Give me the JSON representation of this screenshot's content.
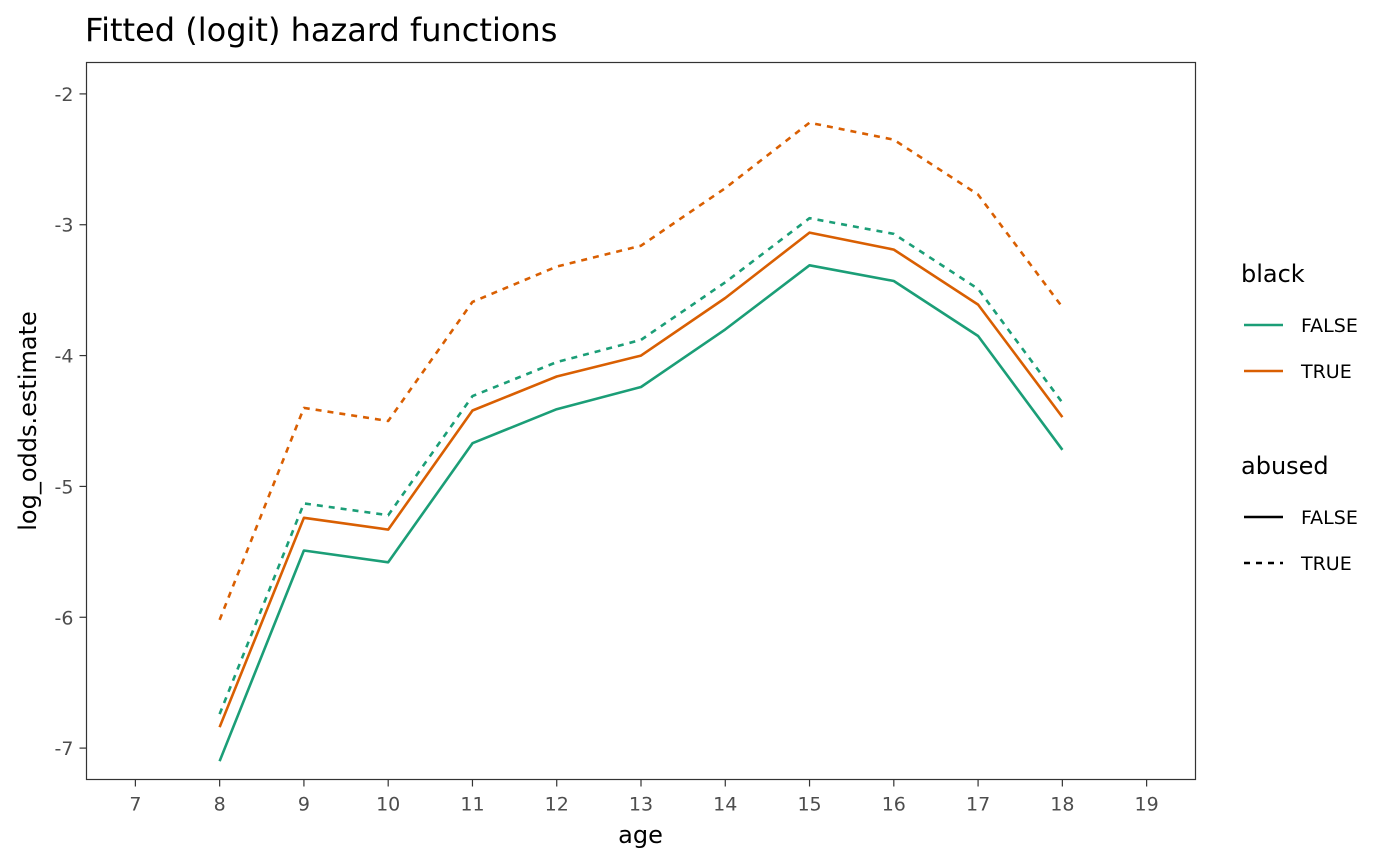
{
  "chart_data": {
    "type": "line",
    "title": "Fitted (logit) hazard functions",
    "xlabel": "age",
    "ylabel": "log_odds.estimate",
    "x": [
      8,
      9,
      10,
      11,
      12,
      13,
      14,
      15,
      16,
      17,
      18
    ],
    "xlim": [
      6.42,
      19.58
    ],
    "ylim": [
      -7.24,
      -1.76
    ],
    "xticks": [
      7,
      8,
      9,
      10,
      11,
      12,
      13,
      14,
      15,
      16,
      17,
      18,
      19
    ],
    "yticks": [
      -7,
      -6,
      -5,
      -4,
      -3,
      -2
    ],
    "series": [
      {
        "black": "FALSE",
        "abused": "FALSE",
        "color": "#1b9e77",
        "dash": "solid",
        "values": [
          -7.1,
          -5.49,
          -5.58,
          -4.67,
          -4.41,
          -4.24,
          -3.8,
          -3.31,
          -3.43,
          -3.85,
          -4.72
        ]
      },
      {
        "black": "TRUE",
        "abused": "FALSE",
        "color": "#d95f02",
        "dash": "solid",
        "values": [
          -6.84,
          -5.24,
          -5.33,
          -4.42,
          -4.16,
          -4.0,
          -3.56,
          -3.06,
          -3.19,
          -3.61,
          -4.47
        ]
      },
      {
        "black": "FALSE",
        "abused": "TRUE",
        "color": "#1b9e77",
        "dash": "dotted",
        "values": [
          -6.74,
          -5.13,
          -5.22,
          -4.31,
          -4.05,
          -3.88,
          -3.44,
          -2.95,
          -3.07,
          -3.49,
          -4.36
        ]
      },
      {
        "black": "TRUE",
        "abused": "TRUE",
        "color": "#d95f02",
        "dash": "dotted",
        "values": [
          -6.02,
          -4.4,
          -4.5,
          -3.59,
          -3.32,
          -3.16,
          -2.72,
          -2.22,
          -2.35,
          -2.77,
          -3.63
        ]
      }
    ],
    "legend": {
      "position": "right",
      "groups": [
        {
          "title": "black",
          "kind": "color",
          "items": [
            {
              "label": "FALSE",
              "color": "#1b9e77"
            },
            {
              "label": "TRUE",
              "color": "#d95f02"
            }
          ]
        },
        {
          "title": "abused",
          "kind": "linetype",
          "items": [
            {
              "label": "FALSE",
              "dash": "solid"
            },
            {
              "label": "TRUE",
              "dash": "dotted"
            }
          ]
        }
      ]
    },
    "grid": false
  }
}
